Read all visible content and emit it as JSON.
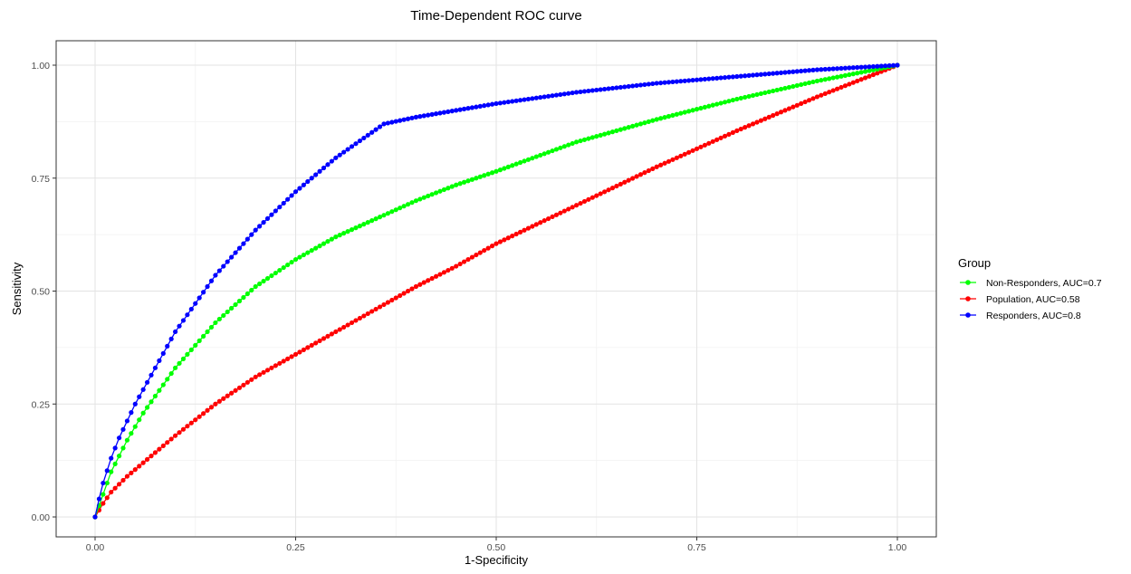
{
  "chart_data": {
    "type": "line",
    "title": "Time-Dependent ROC curve",
    "xlabel": "1-Specificity",
    "ylabel": "Sensitivity",
    "xlim": [
      0,
      1
    ],
    "ylim": [
      0,
      1
    ],
    "x_ticks": [
      "0.00",
      "0.25",
      "0.50",
      "0.75",
      "1.00"
    ],
    "y_ticks": [
      "0.00",
      "0.25",
      "0.50",
      "0.75",
      "1.00"
    ],
    "grid": true,
    "legend": {
      "title": "Group",
      "placement": "right"
    },
    "series": [
      {
        "name": "Non-Responders, AUC=0.7",
        "color": "#00ff00",
        "x": [
          0,
          0.01,
          0.02,
          0.04,
          0.06,
          0.08,
          0.1,
          0.15,
          0.2,
          0.25,
          0.3,
          0.35,
          0.4,
          0.45,
          0.5,
          0.6,
          0.7,
          0.8,
          0.9,
          1.0
        ],
        "y": [
          0,
          0.05,
          0.1,
          0.17,
          0.23,
          0.28,
          0.33,
          0.43,
          0.51,
          0.57,
          0.62,
          0.66,
          0.7,
          0.735,
          0.765,
          0.83,
          0.88,
          0.925,
          0.965,
          1.0
        ]
      },
      {
        "name": "Population, AUC=0.58",
        "color": "#ff0000",
        "x": [
          0,
          0.005,
          0.01,
          0.02,
          0.04,
          0.06,
          0.08,
          0.1,
          0.15,
          0.2,
          0.25,
          0.3,
          0.35,
          0.4,
          0.45,
          0.5,
          0.6,
          0.7,
          0.8,
          0.9,
          1.0
        ],
        "y": [
          0,
          0.015,
          0.03,
          0.055,
          0.09,
          0.12,
          0.15,
          0.18,
          0.25,
          0.31,
          0.36,
          0.41,
          0.46,
          0.51,
          0.555,
          0.605,
          0.69,
          0.775,
          0.855,
          0.93,
          1.0
        ]
      },
      {
        "name": "Responders, AUC=0.8",
        "color": "#0000ff",
        "x": [
          0,
          0.005,
          0.01,
          0.02,
          0.03,
          0.05,
          0.075,
          0.1,
          0.15,
          0.2,
          0.25,
          0.3,
          0.36,
          0.4,
          0.5,
          0.6,
          0.7,
          0.8,
          0.9,
          1.0
        ],
        "y": [
          0,
          0.04,
          0.075,
          0.13,
          0.175,
          0.25,
          0.33,
          0.41,
          0.535,
          0.635,
          0.72,
          0.795,
          0.87,
          0.885,
          0.915,
          0.94,
          0.96,
          0.975,
          0.99,
          1.0
        ]
      }
    ]
  }
}
